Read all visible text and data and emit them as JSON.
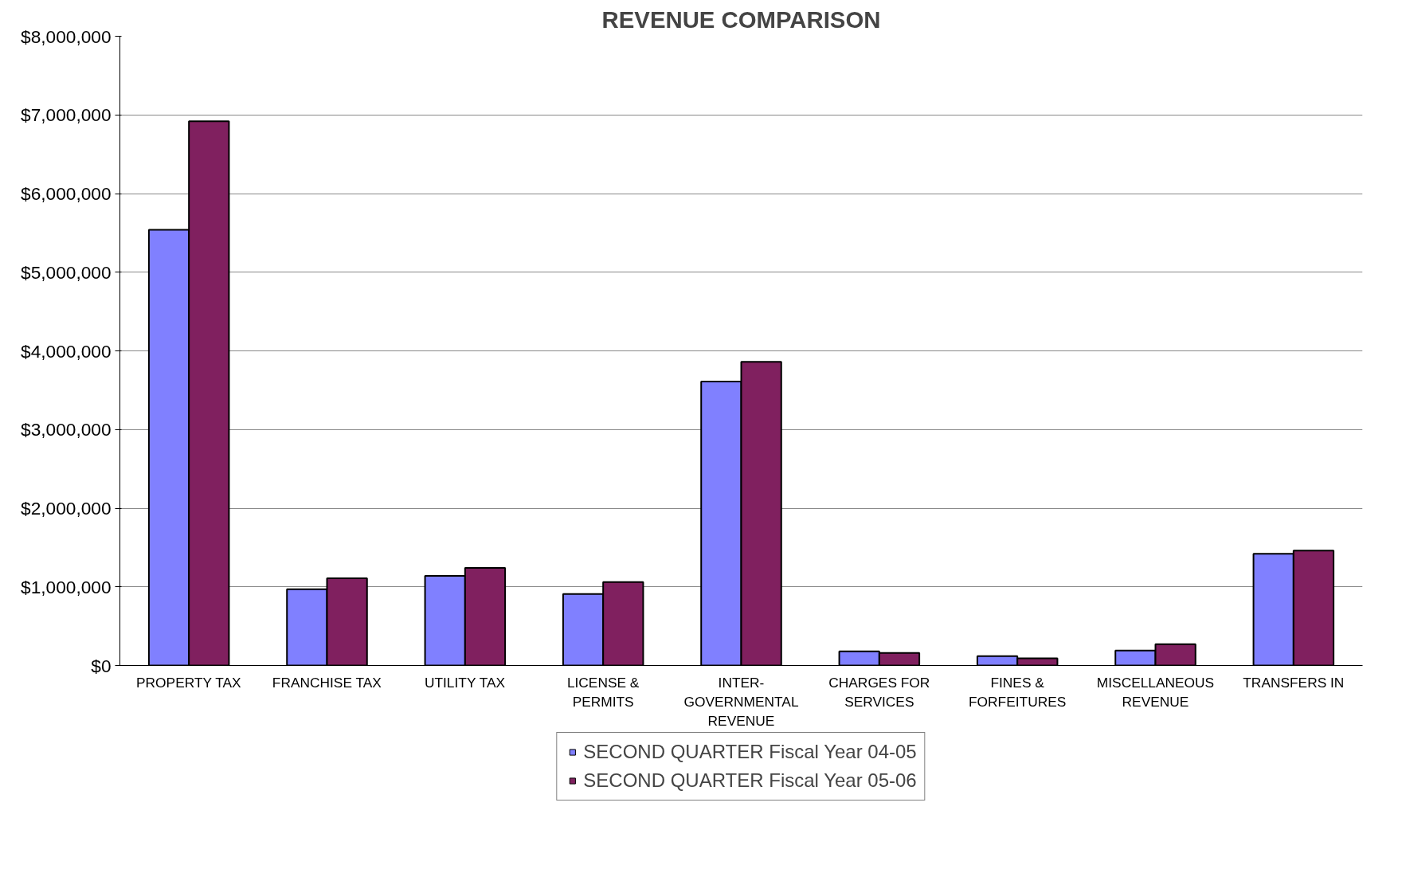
{
  "chart_data": {
    "type": "bar",
    "title": "REVENUE COMPARISON",
    "categories": [
      "PROPERTY TAX",
      "FRANCHISE TAX",
      "UTILITY TAX",
      "LICENSE &\nPERMITS",
      "INTER-\nGOVERNMENTAL\nREVENUE",
      "CHARGES FOR\nSERVICES",
      "FINES &\nFORFEITURES",
      "MISCELLANEOUS\nREVENUE",
      "TRANSFERS IN"
    ],
    "series": [
      {
        "name": "SECOND QUARTER Fiscal Year 04-05",
        "color": "#8080ff",
        "values": [
          5540000,
          970000,
          1140000,
          910000,
          3610000,
          180000,
          120000,
          190000,
          1420000
        ]
      },
      {
        "name": "SECOND QUARTER Fiscal Year 05-06",
        "color": "#80205f",
        "values": [
          6920000,
          1110000,
          1240000,
          1060000,
          3860000,
          160000,
          90000,
          270000,
          1460000
        ]
      }
    ],
    "ylim": [
      0,
      8000000
    ],
    "yticks": [
      {
        "value": 0,
        "label": "$0"
      },
      {
        "value": 1000000,
        "label": "$1,000,000"
      },
      {
        "value": 2000000,
        "label": "$2,000,000"
      },
      {
        "value": 3000000,
        "label": "$3,000,000"
      },
      {
        "value": 4000000,
        "label": "$4,000,000"
      },
      {
        "value": 5000000,
        "label": "$5,000,000"
      },
      {
        "value": 6000000,
        "label": "$6,000,000"
      },
      {
        "value": 7000000,
        "label": "$7,000,000"
      },
      {
        "value": 8000000,
        "label": "$8,000,000"
      }
    ],
    "grid": "y",
    "legend": "bottom"
  }
}
